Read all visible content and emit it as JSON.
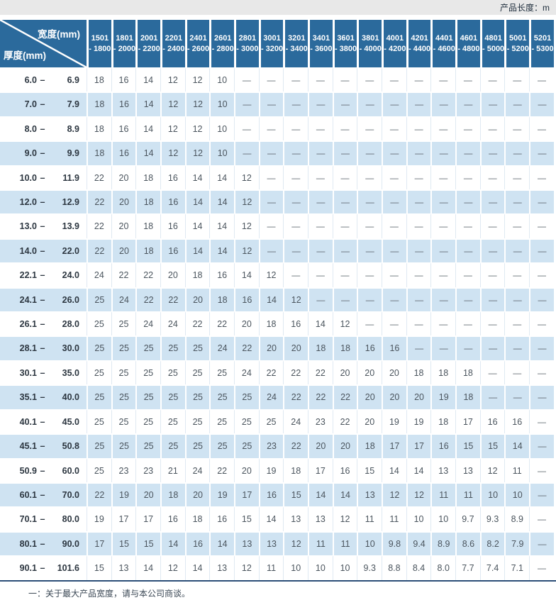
{
  "topbar": {
    "product_length_label": "产品长度：m"
  },
  "table": {
    "corner": {
      "width_label": "宽度(mm)",
      "thickness_label": "厚度(mm)"
    },
    "columns": [
      {
        "line1": "1501",
        "line2": "- 1800"
      },
      {
        "line1": "1801",
        "line2": "- 2000"
      },
      {
        "line1": "2001",
        "line2": "- 2200"
      },
      {
        "line1": "2201",
        "line2": "- 2400"
      },
      {
        "line1": "2401",
        "line2": "- 2600"
      },
      {
        "line1": "2601",
        "line2": "- 2800"
      },
      {
        "line1": "2801",
        "line2": "- 3000"
      },
      {
        "line1": "3001",
        "line2": "- 3200"
      },
      {
        "line1": "3201",
        "line2": "- 3400"
      },
      {
        "line1": "3401",
        "line2": "- 3600"
      },
      {
        "line1": "3601",
        "line2": "- 3800"
      },
      {
        "line1": "3801",
        "line2": "- 4000"
      },
      {
        "line1": "4001",
        "line2": "- 4200"
      },
      {
        "line1": "4201",
        "line2": "- 4400"
      },
      {
        "line1": "4401",
        "line2": "- 4600"
      },
      {
        "line1": "4601",
        "line2": "- 4800"
      },
      {
        "line1": "4801",
        "line2": "- 5000"
      },
      {
        "line1": "5001",
        "line2": "- 5200"
      },
      {
        "line1": "5201",
        "line2": "- 5300"
      }
    ],
    "rows": [
      {
        "label": "6.0 – 6.9",
        "values": [
          "18",
          "16",
          "14",
          "12",
          "12",
          "10",
          "—",
          "—",
          "—",
          "—",
          "—",
          "—",
          "—",
          "—",
          "—",
          "—",
          "—",
          "—",
          "—"
        ]
      },
      {
        "label": "7.0 – 7.9",
        "values": [
          "18",
          "16",
          "14",
          "12",
          "12",
          "10",
          "—",
          "—",
          "—",
          "—",
          "—",
          "—",
          "—",
          "—",
          "—",
          "—",
          "—",
          "—",
          "—"
        ]
      },
      {
        "label": "8.0 – 8.9",
        "values": [
          "18",
          "16",
          "14",
          "12",
          "12",
          "10",
          "—",
          "—",
          "—",
          "—",
          "—",
          "—",
          "—",
          "—",
          "—",
          "—",
          "—",
          "—",
          "—"
        ]
      },
      {
        "label": "9.0 – 9.9",
        "values": [
          "18",
          "16",
          "14",
          "12",
          "12",
          "10",
          "—",
          "—",
          "—",
          "—",
          "—",
          "—",
          "—",
          "—",
          "—",
          "—",
          "—",
          "—",
          "—"
        ]
      },
      {
        "label": "10.0 – 11.9",
        "values": [
          "22",
          "20",
          "18",
          "16",
          "14",
          "14",
          "12",
          "—",
          "—",
          "—",
          "—",
          "—",
          "—",
          "—",
          "—",
          "—",
          "—",
          "—",
          "—"
        ]
      },
      {
        "label": "12.0 – 12.9",
        "values": [
          "22",
          "20",
          "18",
          "16",
          "14",
          "14",
          "12",
          "—",
          "—",
          "—",
          "—",
          "—",
          "—",
          "—",
          "—",
          "—",
          "—",
          "—",
          "—"
        ]
      },
      {
        "label": "13.0 – 13.9",
        "values": [
          "22",
          "20",
          "18",
          "16",
          "14",
          "14",
          "12",
          "—",
          "—",
          "—",
          "—",
          "—",
          "—",
          "—",
          "—",
          "—",
          "—",
          "—",
          "—"
        ]
      },
      {
        "label": "14.0 – 22.0",
        "values": [
          "22",
          "20",
          "18",
          "16",
          "14",
          "14",
          "12",
          "—",
          "—",
          "—",
          "—",
          "—",
          "—",
          "—",
          "—",
          "—",
          "—",
          "—",
          "—"
        ]
      },
      {
        "label": "22.1 – 24.0",
        "values": [
          "24",
          "22",
          "22",
          "20",
          "18",
          "16",
          "14",
          "12",
          "—",
          "—",
          "—",
          "—",
          "—",
          "—",
          "—",
          "—",
          "—",
          "—",
          "—"
        ]
      },
      {
        "label": "24.1 – 26.0",
        "values": [
          "25",
          "24",
          "22",
          "22",
          "20",
          "18",
          "16",
          "14",
          "12",
          "—",
          "—",
          "—",
          "—",
          "—",
          "—",
          "—",
          "—",
          "—",
          "—"
        ]
      },
      {
        "label": "26.1 – 28.0",
        "values": [
          "25",
          "25",
          "24",
          "24",
          "22",
          "22",
          "20",
          "18",
          "16",
          "14",
          "12",
          "—",
          "—",
          "—",
          "—",
          "—",
          "—",
          "—",
          "—"
        ]
      },
      {
        "label": "28.1 – 30.0",
        "values": [
          "25",
          "25",
          "25",
          "25",
          "25",
          "24",
          "22",
          "20",
          "20",
          "18",
          "18",
          "16",
          "16",
          "—",
          "—",
          "—",
          "—",
          "—",
          "—"
        ]
      },
      {
        "label": "30.1 – 35.0",
        "values": [
          "25",
          "25",
          "25",
          "25",
          "25",
          "25",
          "24",
          "22",
          "22",
          "22",
          "20",
          "20",
          "20",
          "18",
          "18",
          "18",
          "—",
          "—",
          "—"
        ]
      },
      {
        "label": "35.1 – 40.0",
        "values": [
          "25",
          "25",
          "25",
          "25",
          "25",
          "25",
          "25",
          "24",
          "22",
          "22",
          "22",
          "20",
          "20",
          "20",
          "19",
          "18",
          "—",
          "—",
          "—"
        ]
      },
      {
        "label": "40.1 – 45.0",
        "values": [
          "25",
          "25",
          "25",
          "25",
          "25",
          "25",
          "25",
          "25",
          "24",
          "23",
          "22",
          "20",
          "19",
          "19",
          "18",
          "17",
          "16",
          "16",
          "—"
        ]
      },
      {
        "label": "45.1 – 50.8",
        "values": [
          "25",
          "25",
          "25",
          "25",
          "25",
          "25",
          "25",
          "23",
          "22",
          "20",
          "20",
          "18",
          "17",
          "17",
          "16",
          "15",
          "15",
          "14",
          "—"
        ]
      },
      {
        "label": "50.9 – 60.0",
        "values": [
          "25",
          "23",
          "23",
          "21",
          "24",
          "22",
          "20",
          "19",
          "18",
          "17",
          "16",
          "15",
          "14",
          "14",
          "13",
          "13",
          "12",
          "11",
          "—"
        ]
      },
      {
        "label": "60.1 – 70.0",
        "values": [
          "22",
          "19",
          "20",
          "18",
          "20",
          "19",
          "17",
          "16",
          "15",
          "14",
          "14",
          "13",
          "12",
          "12",
          "11",
          "11",
          "10",
          "10",
          "—"
        ]
      },
      {
        "label": "70.1 – 80.0",
        "values": [
          "19",
          "17",
          "17",
          "16",
          "18",
          "16",
          "15",
          "14",
          "13",
          "13",
          "12",
          "11",
          "11",
          "10",
          "10",
          "9.7",
          "9.3",
          "8.9",
          "—"
        ]
      },
      {
        "label": "80.1 – 90.0",
        "values": [
          "17",
          "15",
          "15",
          "14",
          "16",
          "14",
          "13",
          "13",
          "12",
          "11",
          "11",
          "10",
          "9.8",
          "9.4",
          "8.9",
          "8.6",
          "8.2",
          "7.9",
          "—"
        ]
      },
      {
        "label": "90.1 – 101.6",
        "values": [
          "15",
          "13",
          "14",
          "12",
          "14",
          "13",
          "12",
          "11",
          "10",
          "10",
          "10",
          "9.3",
          "8.8",
          "8.4",
          "8.0",
          "7.7",
          "7.4",
          "7.1",
          "—"
        ]
      }
    ]
  },
  "footer": {
    "note": "一：关于最大产品宽度，请与本公司商谈。"
  },
  "colors": {
    "header-bg": "#2b6a9c",
    "row-alt": "#cfe3f2",
    "topbar-bg": "#e8e8e8",
    "navy-line": "#2b4e77",
    "cell-text": "#4b555e",
    "label-text": "#2c3640",
    "header-text": "#ffffff"
  }
}
